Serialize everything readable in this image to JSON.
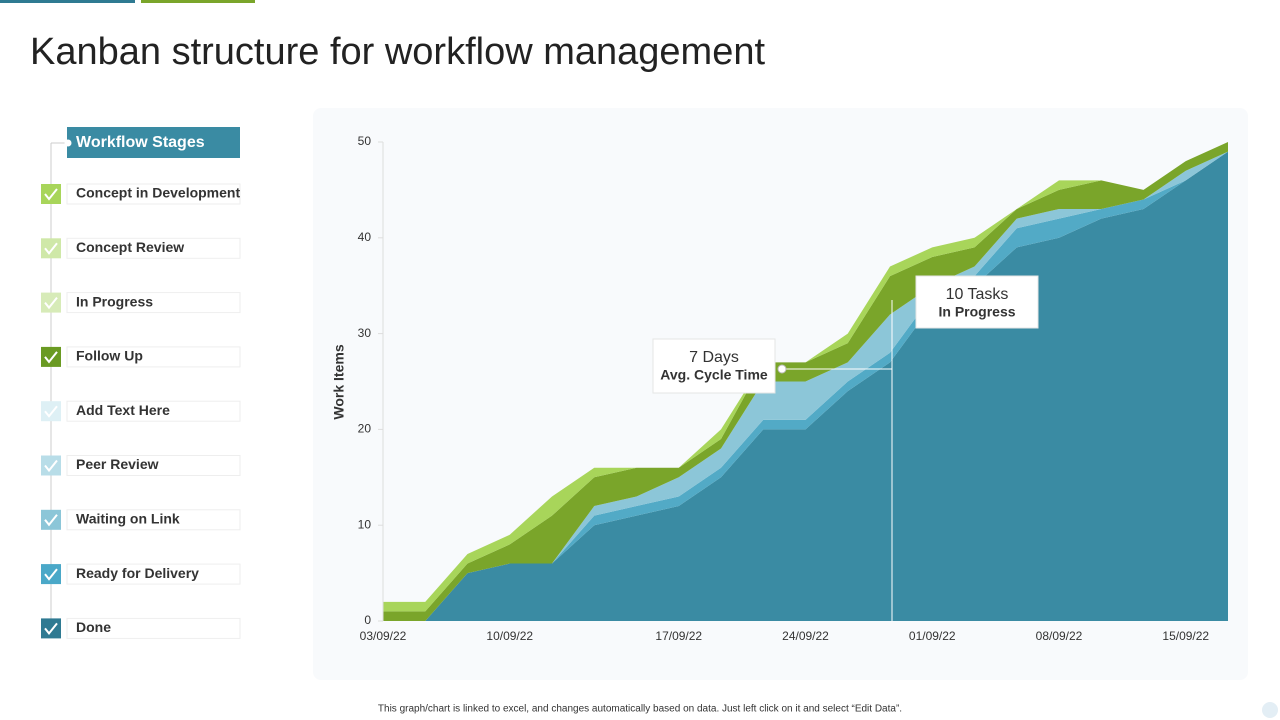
{
  "title": "Kanban structure for workflow management",
  "stages_header": "Workflow Stages",
  "stages": [
    {
      "name": "Concept in Development",
      "color": "#a8d55a"
    },
    {
      "name": "Concept Review",
      "color": "#cfe8a8"
    },
    {
      "name": "In Progress",
      "color": "#d7ebb8"
    },
    {
      "name": "Follow Up",
      "color": "#6a9a22"
    },
    {
      "name": "Add Text Here",
      "color": "#def0f5"
    },
    {
      "name": "Peer Review",
      "color": "#b8dde8"
    },
    {
      "name": "Waiting on Link",
      "color": "#8cc6d8"
    },
    {
      "name": "Ready for Delivery",
      "color": "#4aa8c8"
    },
    {
      "name": "Done",
      "color": "#2f7a92"
    }
  ],
  "annotations": [
    {
      "value": "7 Days",
      "label": "Avg. Cycle Time"
    },
    {
      "value": "10 Tasks",
      "label": "In Progress"
    }
  ],
  "footnote": "This graph/chart is linked to excel, and changes automatically based on data. Just left click on it and select “Edit Data”.",
  "chart_data": {
    "type": "stacked_area",
    "y_label": "Work Items",
    "categories": [
      "03/09/22",
      null,
      null,
      "10/09/22",
      null,
      null,
      null,
      "17/09/22",
      null,
      null,
      "24/09/22",
      null,
      null,
      "01/09/22",
      null,
      null,
      "08/09/22",
      null,
      null,
      "15/09/22",
      null
    ],
    "series": [
      {
        "name": "Done",
        "color": "#3a8ba3",
        "values": [
          0,
          0,
          5,
          6,
          6,
          10,
          11,
          12,
          15,
          20,
          20,
          24,
          27,
          33,
          35,
          39,
          40,
          42,
          43,
          46,
          49
        ]
      },
      {
        "name": "Ready for Delivery",
        "color": "#52aac6",
        "values": [
          0,
          0,
          0,
          0,
          0,
          1,
          1,
          1,
          1,
          1,
          1,
          1,
          1,
          1,
          1,
          2,
          2,
          1,
          1,
          0,
          0
        ]
      },
      {
        "name": "Waiting on Link",
        "color": "#8cc6d8",
        "values": [
          0,
          0,
          0,
          0,
          0,
          1,
          1,
          2,
          2,
          4,
          4,
          2,
          4,
          1,
          1,
          1,
          1,
          0,
          0,
          1,
          0
        ]
      },
      {
        "name": "Follow Up",
        "color": "#7aa52a",
        "values": [
          1,
          1,
          1,
          2,
          5,
          3,
          3,
          1,
          1,
          2,
          2,
          2,
          4,
          3,
          2,
          1,
          2,
          3,
          1,
          1,
          1
        ]
      },
      {
        "name": "In Progress",
        "color": "#a8d55a",
        "values": [
          1,
          1,
          1,
          1,
          2,
          1,
          0,
          0,
          1,
          0,
          0,
          1,
          1,
          1,
          1,
          0,
          1,
          0,
          0,
          0,
          0
        ]
      }
    ],
    "ylim": [
      0,
      50
    ],
    "yticks": [
      0,
      10,
      20,
      30,
      40,
      50
    ]
  }
}
